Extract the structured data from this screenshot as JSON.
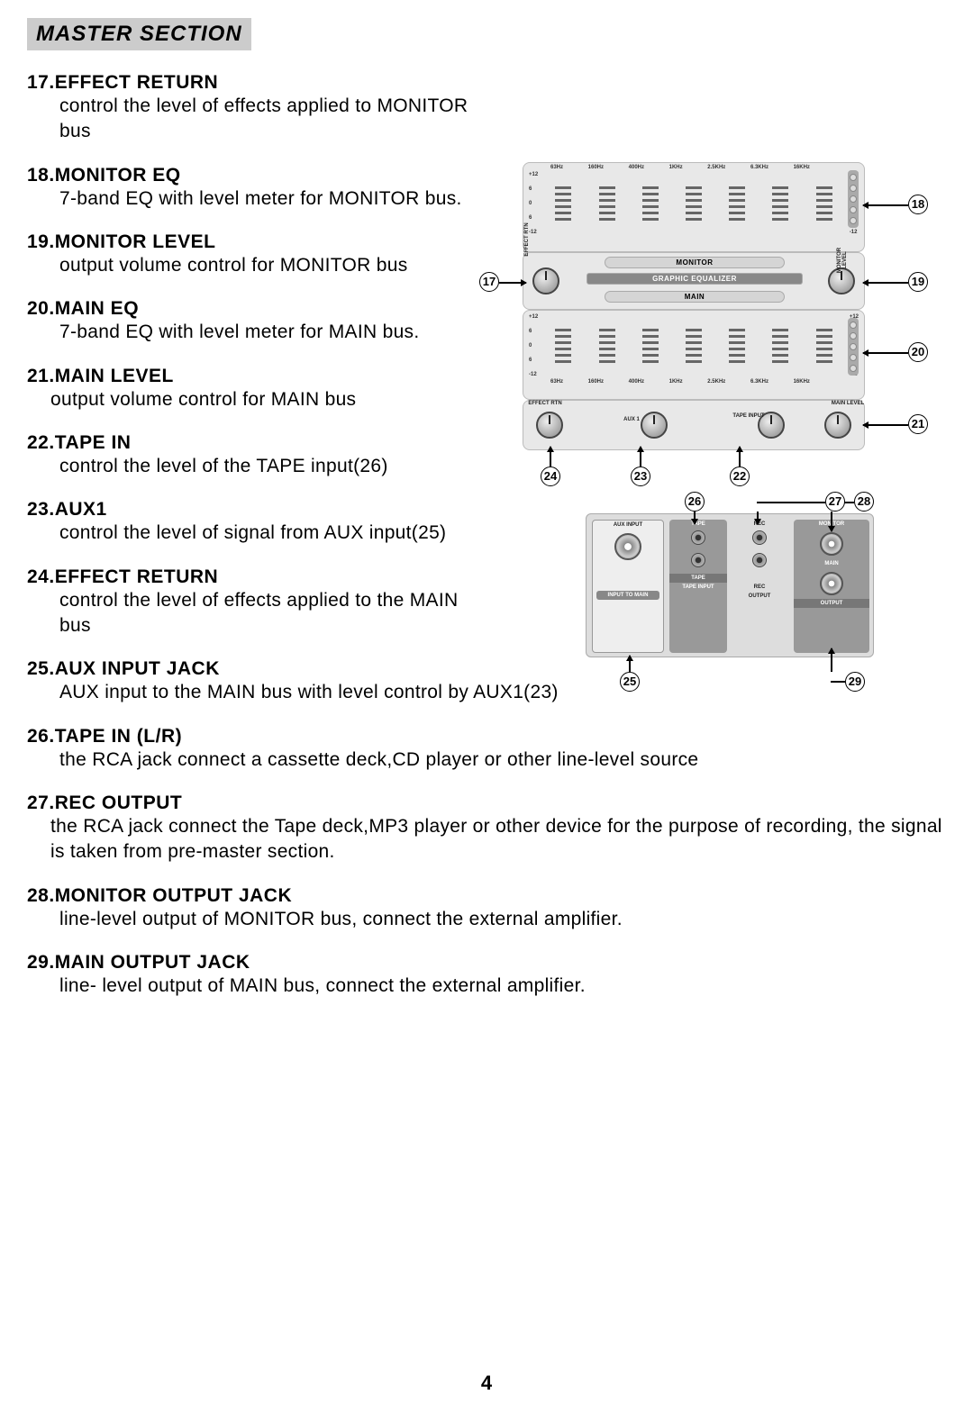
{
  "section_title": "MASTER SECTION",
  "page_number": "4",
  "items": [
    {
      "num": "17.",
      "title": "EFFECT RETURN",
      "desc": "control the level of effects applied to MONITOR bus",
      "narrow": true
    },
    {
      "num": "18.",
      "title": "MONITOR EQ",
      "desc": "7-band EQ with level meter for MONITOR bus.",
      "narrow": true
    },
    {
      "num": "19.",
      "title": "MONITOR LEVEL",
      "desc": "output volume control for MONITOR bus",
      "narrow": true
    },
    {
      "num": "20.",
      "title": "MAIN EQ",
      "desc": "7-band EQ with level meter for MAIN bus.",
      "narrow": true
    },
    {
      "num": "21.",
      "title": "MAIN LEVEL",
      "desc": "output volume control for MAIN bus",
      "narrow": true,
      "no_indent": true
    },
    {
      "num": "22.",
      "title": "TAPE IN",
      "desc": "control the level of the TAPE input(26)",
      "narrow": true
    },
    {
      "num": "23.",
      "title": "AUX1",
      "desc": "control the level of signal from AUX input(25)",
      "narrow": false
    },
    {
      "num": "24.",
      "title": "EFFECT RETURN",
      "desc": "control the level of effects applied to the MAIN bus",
      "narrow": true
    },
    {
      "num": "25.",
      "title": "AUX INPUT JACK",
      "desc": "AUX input to the MAIN bus with level control by AUX1(23)",
      "narrow": false
    },
    {
      "num": "26.",
      "title": "TAPE IN  (L/R)",
      "desc": "the RCA jack connect a cassette deck,CD player or other line-level source",
      "narrow": false
    },
    {
      "num": "27.",
      "title": "REC OUTPUT",
      "desc": "the RCA jack connect the Tape deck,MP3 player or other device for the purpose of recording, the signal is taken from pre-master section.",
      "narrow": false,
      "no_indent": true
    },
    {
      "num": "28.",
      "title": "MONITOR OUTPUT JACK",
      "desc": "line-level output of MONITOR bus, connect the external amplifier.",
      "narrow": false
    },
    {
      "num": "29.",
      "title": "MAIN OUTPUT JACK",
      "desc": "line- level output of MAIN bus, connect the external amplifier.",
      "narrow": false
    }
  ],
  "eq_freqs": [
    "63Hz",
    "160Hz",
    "400Hz",
    "1KHz",
    "2.5KHz",
    "6.3KHz",
    "16KHz"
  ],
  "eq_gains": [
    "+12",
    "6",
    "0",
    "6",
    "-12"
  ],
  "strip_monitor": "MONITOR",
  "strip_ge": "GRAPHIC EQUALIZER",
  "strip_main": "MAIN",
  "knob_effect_rtn": "EFFECT\nRTN",
  "knob_monitor_level": "MONITOR\nLEVEL",
  "knob_aux1": "AUX 1",
  "knob_tape_input": "TAPE\nINPUT",
  "knob_main_level": "MAIN\nLEVEL",
  "io_aux_input": "AUX INPUT",
  "io_input_to_main": "INPUT TO\nMAIN",
  "io_tape": "TAPE",
  "io_tape_input": "TAPE\nINPUT",
  "io_rec": "REC",
  "io_output": "OUTPUT",
  "io_monitor": "MONITOR",
  "io_main": "MAIN",
  "io_output2": "OUTPUT",
  "callouts": {
    "c17": "17",
    "c18": "18",
    "c19": "19",
    "c20": "20",
    "c21": "21",
    "c22": "22",
    "c23": "23",
    "c24": "24",
    "c25": "25",
    "c26": "26",
    "c27": "27",
    "c28": "28",
    "c29": "29"
  }
}
